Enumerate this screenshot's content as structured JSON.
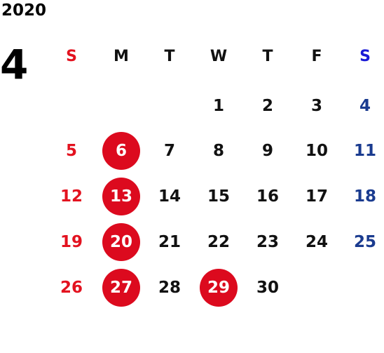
{
  "calendar": {
    "year": "2020",
    "month": "4",
    "weekdays": [
      "S",
      "M",
      "T",
      "W",
      "T",
      "F",
      "S"
    ],
    "first_weekday_index": 3,
    "weeks": [
      [
        "",
        "",
        "",
        "1",
        "2",
        "3",
        "4"
      ],
      [
        "5",
        "6",
        "7",
        "8",
        "9",
        "10",
        "11"
      ],
      [
        "12",
        "13",
        "14",
        "15",
        "16",
        "17",
        "18"
      ],
      [
        "19",
        "20",
        "21",
        "22",
        "23",
        "24",
        "25"
      ],
      [
        "26",
        "27",
        "28",
        "29",
        "30",
        "",
        ""
      ]
    ],
    "highlighted_days": [
      "6",
      "13",
      "20",
      "27",
      "29"
    ],
    "colors": {
      "sunday": "#e3121f",
      "saturday_header": "#1a1ad6",
      "saturday": "#1a3b8f",
      "highlight": "#dc0a1e",
      "text": "#111111"
    }
  }
}
